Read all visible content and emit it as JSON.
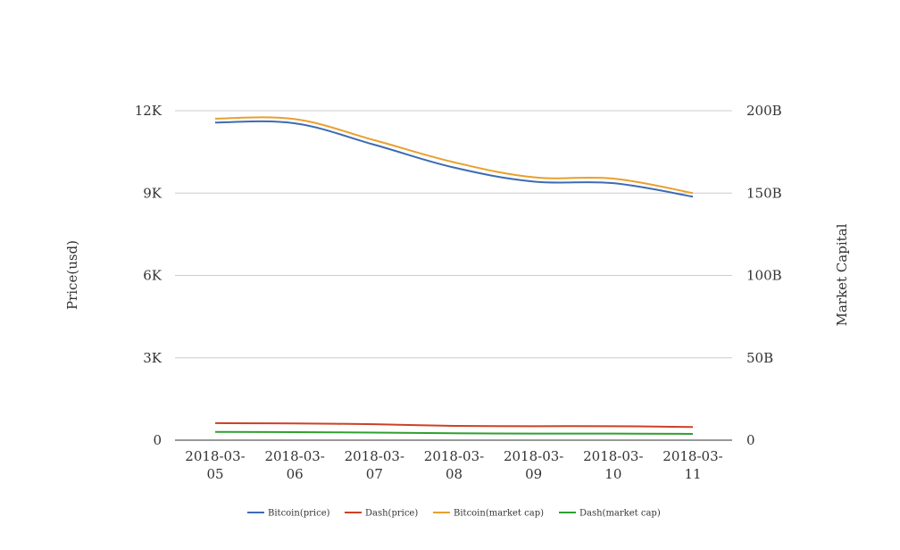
{
  "chart_data": {
    "type": "line",
    "title": "",
    "xlabel": "",
    "ylabel_left": "Price(usd)",
    "ylabel_right": "Market Capital",
    "categories": [
      [
        "2018-03-",
        "05"
      ],
      [
        "2018-03-",
        "06"
      ],
      [
        "2018-03-",
        "07"
      ],
      [
        "2018-03-",
        "08"
      ],
      [
        "2018-03-",
        "09"
      ],
      [
        "2018-03-",
        "10"
      ],
      [
        "2018-03-",
        "11"
      ]
    ],
    "left_axis": {
      "min": 0,
      "max": 12000,
      "ticks": [
        0,
        3000,
        6000,
        9000,
        12000
      ],
      "tick_labels": [
        "0",
        "3K",
        "6K",
        "9K",
        "12K"
      ]
    },
    "right_axis": {
      "min": 0,
      "max": 200000000000,
      "ticks": [
        0,
        50000000000,
        100000000000,
        150000000000,
        200000000000
      ],
      "tick_labels": [
        "0",
        "50B",
        "100B",
        "150B",
        "200B"
      ]
    },
    "grid": true,
    "legend_position": "bottom",
    "series": [
      {
        "name": "Bitcoin(price)",
        "axis": "left",
        "color": "#3d6bb3",
        "values": [
          11570,
          11540,
          10760,
          9930,
          9420,
          9360,
          8870
        ]
      },
      {
        "name": "Dash(price)",
        "axis": "left",
        "color": "#cc4125",
        "values": [
          620,
          610,
          580,
          520,
          510,
          510,
          480
        ]
      },
      {
        "name": "Bitcoin(market cap)",
        "axis": "right",
        "color": "#e8a02e",
        "values": [
          195200000000,
          194900000000,
          182100000000,
          168700000000,
          159600000000,
          158800000000,
          150000000000
        ]
      },
      {
        "name": "Dash(market cap)",
        "axis": "right",
        "color": "#2ea02e",
        "values": [
          5000000000,
          4900000000,
          4600000000,
          4200000000,
          4000000000,
          4000000000,
          3800000000
        ]
      }
    ]
  }
}
